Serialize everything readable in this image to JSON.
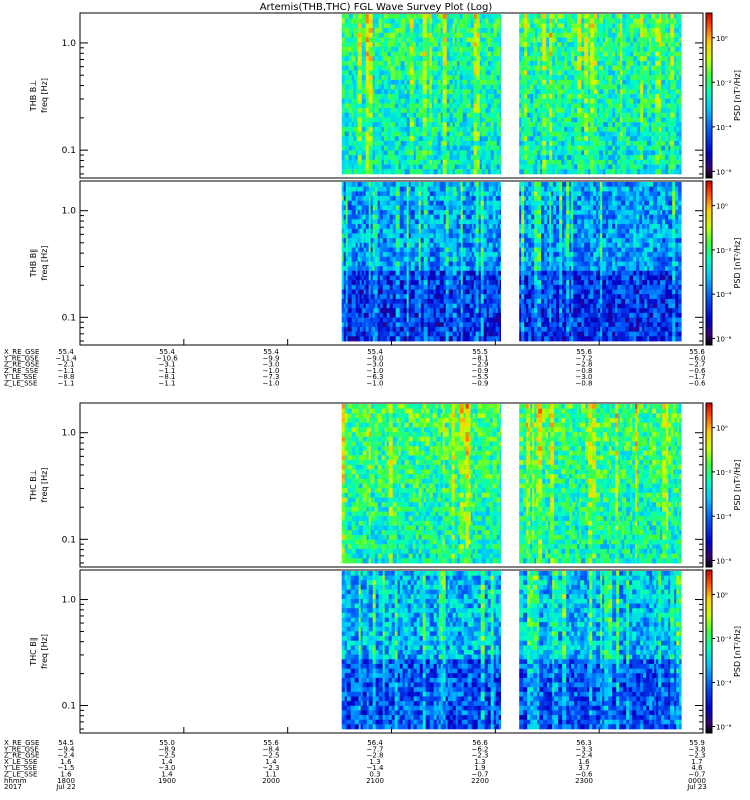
{
  "title": "Artemis(THB,THC) FGL Wave Survey Plot (Log)",
  "chart_data": [
    {
      "type": "heatmap",
      "panel": "THB B⊥",
      "ylabel_line1": "THB B⊥",
      "ylabel_line2": "freq [Hz]",
      "yticks": [
        "1.0",
        "0.1"
      ],
      "ylim": [
        0.055,
        1.9
      ],
      "yscale": "log",
      "colorbar_label": "PSD [nT²/Hz]",
      "colorbar_ticks": [
        "10⁰",
        "10⁻²",
        "10⁻⁴",
        "10⁻⁶"
      ],
      "data_segments": [
        [
          0.42,
          0.675
        ],
        [
          0.705,
          0.965
        ]
      ]
    },
    {
      "type": "heatmap",
      "panel": "THB B∥",
      "ylabel_line1": "THB B∥",
      "ylabel_line2": "freq [Hz]",
      "yticks": [
        "1.0",
        "0.1"
      ],
      "ylim": [
        0.055,
        1.9
      ],
      "yscale": "log",
      "colorbar_label": "PSD [nT²/Hz]",
      "colorbar_ticks": [
        "10⁰",
        "10⁻²",
        "10⁻⁴",
        "10⁻⁶"
      ],
      "data_segments": [
        [
          0.42,
          0.675
        ],
        [
          0.705,
          0.965
        ]
      ]
    },
    {
      "type": "heatmap",
      "panel": "THC B⊥",
      "ylabel_line1": "THC B⊥",
      "ylabel_line2": "freq [Hz]",
      "yticks": [
        "1.0",
        "0.1"
      ],
      "ylim": [
        0.055,
        1.9
      ],
      "yscale": "log",
      "colorbar_label": "PSD [nT²/Hz]",
      "colorbar_ticks": [
        "10⁰",
        "10⁻²",
        "10⁻⁴",
        "10⁻⁶"
      ],
      "data_segments": [
        [
          0.42,
          0.675
        ],
        [
          0.705,
          0.965
        ]
      ]
    },
    {
      "type": "heatmap",
      "panel": "THC B∥",
      "ylabel_line1": "THC B∥",
      "ylabel_line2": "freq [Hz]",
      "yticks": [
        "1.0",
        "0.1"
      ],
      "ylim": [
        0.055,
        1.9
      ],
      "yscale": "log",
      "colorbar_label": "PSD [nT²/Hz]",
      "colorbar_ticks": [
        "10⁰",
        "10⁻²",
        "10⁻⁴",
        "10⁻⁶"
      ],
      "data_segments": [
        [
          0.42,
          0.675
        ],
        [
          0.705,
          0.965
        ]
      ]
    }
  ],
  "thb_ephemeris": {
    "rows": [
      {
        "label": "X_RE_GSE",
        "values": [
          "55.4",
          "55.4",
          "55.4",
          "55.4",
          "55.5",
          "55.6",
          "55.6"
        ]
      },
      {
        "label": "Y_RE_GSE",
        "values": [
          "−11.4",
          "−10.6",
          "−9.9",
          "−9.0",
          "−8.1",
          "−7.2",
          "−6.0"
        ]
      },
      {
        "label": "Z_RE_GSE",
        "values": [
          "−2.1",
          "−3.1",
          "−3.0",
          "−3.0",
          "−2.9",
          "−2.8",
          "−2.7"
        ]
      },
      {
        "label": "Z_RE_SSE",
        "values": [
          "−1.1",
          "−1.1",
          "−1.0",
          "−1.0",
          "−0.9",
          "−0.8",
          "−0.6"
        ]
      },
      {
        "label": "Y_LE_SSE",
        "values": [
          "−8.8",
          "−8.1",
          "−7.3",
          "−6.3",
          "−5.5",
          "−3.0",
          "−1.7"
        ]
      },
      {
        "label": "Z_LE_SSE",
        "values": [
          "−1.1",
          "−1.1",
          "−1.0",
          "−1.0",
          "−0.9",
          "−0.8",
          "−0.6"
        ]
      }
    ]
  },
  "thc_ephemeris": {
    "rows": [
      {
        "label": "X_RE_GSE",
        "values": [
          "54.5",
          "55.0",
          "55.6",
          "56.4",
          "56.6",
          "56.3",
          "55.9"
        ]
      },
      {
        "label": "Y_RE_GSE",
        "values": [
          "−9.4",
          "−8.9",
          "−8.4",
          "−7.7",
          "−6.2",
          "−3.3",
          "−3.8"
        ]
      },
      {
        "label": "Z_RE_GSE",
        "values": [
          "−2.4",
          "−2.5",
          "−2.5",
          "−2.8",
          "−2.3",
          "−2.4",
          "−2.3"
        ]
      },
      {
        "label": "X_LE_SSE",
        "values": [
          "1.6",
          "1.4",
          "1.4",
          "1.3",
          "1.3",
          "1.6",
          "1.7"
        ]
      },
      {
        "label": "Y_LE_SSE",
        "values": [
          "−1.5",
          "−3.0",
          "−2.3",
          "−1.4",
          "1.9",
          "3.7",
          "4.6"
        ]
      },
      {
        "label": "Z_LE_SSE",
        "values": [
          "1.6",
          "1.4",
          "1.1",
          "0.3",
          "−0.7",
          "−0.6",
          "−0.7"
        ]
      }
    ],
    "time_label": "hhmm",
    "time_values": [
      "1800",
      "1900",
      "2000",
      "2100",
      "2200",
      "2300",
      "0000"
    ],
    "date_label": "2017",
    "date_values": [
      "Jul 22",
      "",
      "",
      "",
      "",
      "",
      "Jul 23"
    ]
  }
}
